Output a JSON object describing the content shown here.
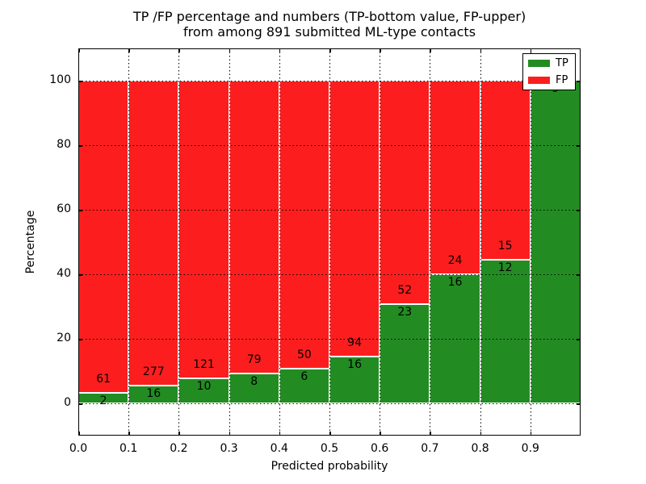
{
  "title": {
    "line1": "TP /FP percentage and numbers (TP-bottom value, FP-upper)",
    "line2": "from among 891 submitted ML-type contacts"
  },
  "axes": {
    "xlabel": "Predicted probability",
    "ylabel": "Percentage",
    "x_tick_labels": [
      "0.0",
      "0.1",
      "0.2",
      "0.3",
      "0.4",
      "0.5",
      "0.6",
      "0.7",
      "0.8",
      "0.9"
    ],
    "y_tick_labels": [
      "0",
      "20",
      "40",
      "60",
      "80",
      "100"
    ]
  },
  "colors": {
    "tp_green": "#228c22",
    "fp_red": "#fc1e1e",
    "grid": "#000000",
    "bar_edge": "#ffffff"
  },
  "chart_data": {
    "type": "bar",
    "stacked": true,
    "normalized": "each bin scaled to 100%",
    "title": "TP /FP percentage and numbers (TP-bottom value, FP-upper) from among 891 submitted ML-type contacts",
    "total_contacts": 891,
    "xlabel": "Predicted probability",
    "ylabel": "Percentage",
    "xlim": [
      0.0,
      1.0
    ],
    "ylim": [
      -10,
      110
    ],
    "y_ticks": [
      0,
      20,
      40,
      60,
      80,
      100
    ],
    "grid": "dotted both axes",
    "bin_width": 0.1,
    "bins": [
      {
        "x_start": 0.0,
        "x_end": 0.1,
        "tp": 2,
        "fp": 61,
        "tp_percent": 3.2
      },
      {
        "x_start": 0.1,
        "x_end": 0.2,
        "tp": 16,
        "fp": 277,
        "tp_percent": 5.5
      },
      {
        "x_start": 0.2,
        "x_end": 0.3,
        "tp": 10,
        "fp": 121,
        "tp_percent": 7.6
      },
      {
        "x_start": 0.3,
        "x_end": 0.4,
        "tp": 8,
        "fp": 79,
        "tp_percent": 9.2
      },
      {
        "x_start": 0.4,
        "x_end": 0.5,
        "tp": 6,
        "fp": 50,
        "tp_percent": 10.7
      },
      {
        "x_start": 0.5,
        "x_end": 0.6,
        "tp": 16,
        "fp": 94,
        "tp_percent": 14.5
      },
      {
        "x_start": 0.6,
        "x_end": 0.7,
        "tp": 23,
        "fp": 52,
        "tp_percent": 30.7
      },
      {
        "x_start": 0.7,
        "x_end": 0.8,
        "tp": 16,
        "fp": 24,
        "tp_percent": 40.0
      },
      {
        "x_start": 0.8,
        "x_end": 0.9,
        "tp": 12,
        "fp": 15,
        "tp_percent": 44.4
      },
      {
        "x_start": 0.9,
        "x_end": 1.0,
        "tp": 9,
        "fp": 0,
        "tp_percent": 100.0
      }
    ],
    "series": [
      {
        "name": "TP",
        "counts": [
          2,
          16,
          10,
          8,
          6,
          16,
          23,
          16,
          12,
          9
        ]
      },
      {
        "name": "FP",
        "counts": [
          61,
          277,
          121,
          79,
          50,
          94,
          52,
          24,
          15,
          0
        ]
      }
    ],
    "legend": {
      "position": "upper right",
      "entries": [
        {
          "label": "TP",
          "color": "#228c22"
        },
        {
          "label": "FP",
          "color": "#fc1e1e"
        }
      ]
    }
  }
}
